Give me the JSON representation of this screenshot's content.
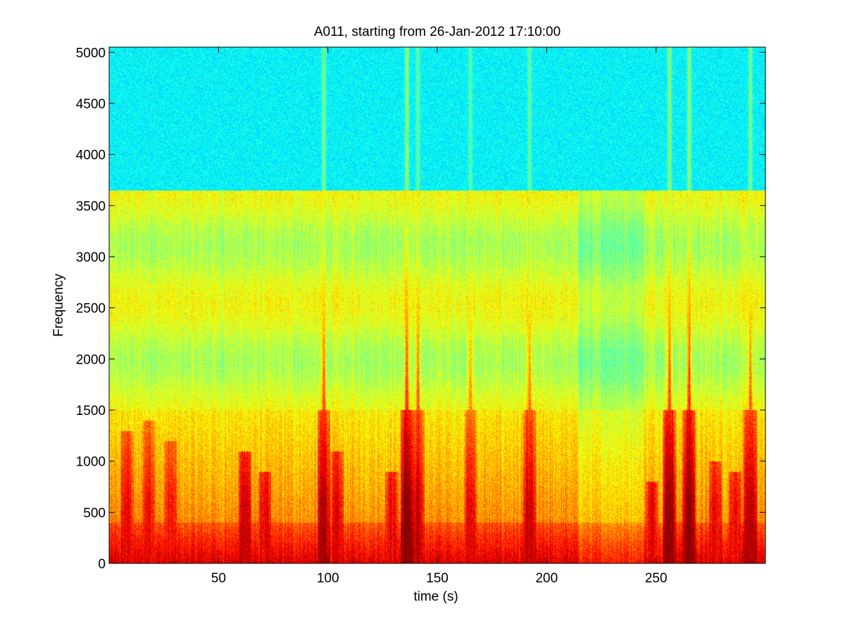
{
  "chart_data": {
    "type": "heatmap",
    "title": "A011, starting from 26-Jan-2012 17:10:00",
    "xlabel": "time (s)",
    "ylabel": "Frequency",
    "xlim": [
      0,
      300
    ],
    "ylim": [
      0,
      5050
    ],
    "xticks": [
      50,
      100,
      150,
      200,
      250
    ],
    "yticks": [
      0,
      500,
      1000,
      1500,
      2000,
      2500,
      3000,
      3500,
      4000,
      4500,
      5000
    ],
    "grid": false,
    "colormap": "jet",
    "noise_floor_level": 0.37,
    "band_edge_hz": 3650,
    "mid_band_level": 0.6,
    "low_freq_level": 0.75,
    "bursts": [
      {
        "t": 8,
        "f_max": 1300,
        "level": 0.85
      },
      {
        "t": 18,
        "f_max": 1400,
        "level": 0.85
      },
      {
        "t": 28,
        "f_max": 1200,
        "level": 0.82
      },
      {
        "t": 62,
        "f_max": 1100,
        "level": 0.9
      },
      {
        "t": 71,
        "f_max": 900,
        "level": 0.85
      },
      {
        "t": 98,
        "f_max": 5050,
        "level": 0.92
      },
      {
        "t": 104,
        "f_max": 1100,
        "level": 0.85
      },
      {
        "t": 129,
        "f_max": 900,
        "level": 0.85
      },
      {
        "t": 136,
        "f_max": 5050,
        "level": 0.98
      },
      {
        "t": 141,
        "f_max": 5050,
        "level": 0.88
      },
      {
        "t": 165,
        "f_max": 5050,
        "level": 0.85
      },
      {
        "t": 192,
        "f_max": 5050,
        "level": 0.88
      },
      {
        "t": 248,
        "f_max": 800,
        "level": 0.85
      },
      {
        "t": 256,
        "f_max": 5050,
        "level": 0.97
      },
      {
        "t": 265,
        "f_max": 5050,
        "level": 0.97
      },
      {
        "t": 277,
        "f_max": 1000,
        "level": 0.85
      },
      {
        "t": 286,
        "f_max": 900,
        "level": 0.85
      },
      {
        "t": 293,
        "f_max": 5050,
        "level": 0.92
      }
    ],
    "quiet_intervals": [
      [
        214,
        244
      ]
    ]
  }
}
